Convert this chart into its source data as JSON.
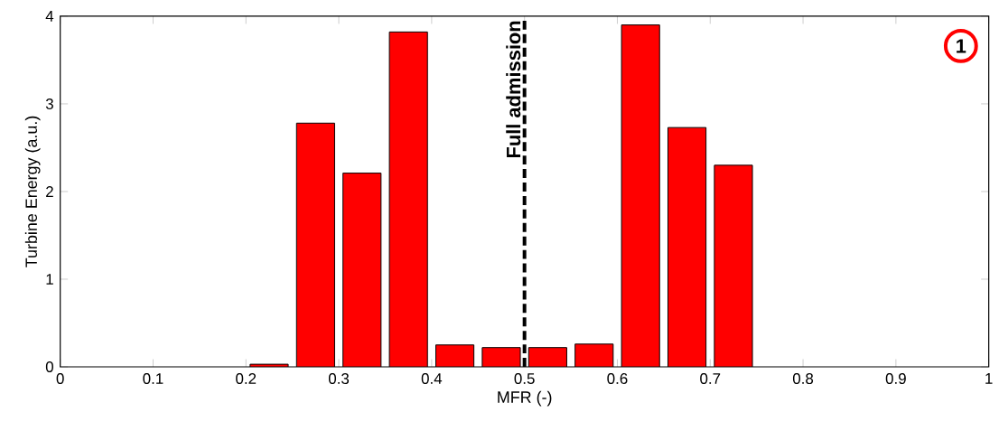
{
  "chart_data": {
    "type": "bar",
    "xlabel": "MFR (-)",
    "ylabel": "Turbine Energy (a.u.)",
    "x": [
      0.225,
      0.275,
      0.325,
      0.375,
      0.425,
      0.475,
      0.525,
      0.575,
      0.625,
      0.675,
      0.725
    ],
    "values": [
      0.03,
      2.78,
      2.21,
      3.82,
      0.25,
      0.22,
      0.22,
      0.26,
      3.9,
      2.73,
      2.3
    ],
    "color": "#ff0000",
    "xlim": [
      0,
      1
    ],
    "ylim": [
      0,
      4
    ],
    "xticks": [
      0,
      0.1,
      0.2,
      0.3,
      0.4,
      0.5,
      0.6,
      0.7,
      0.8,
      0.9,
      1
    ],
    "yticks": [
      0,
      1,
      2,
      3,
      4
    ],
    "ref_lines": [
      {
        "axis": "x",
        "value": 0.5,
        "label": "Full admission",
        "color": "#000000",
        "line_style": "dashed"
      }
    ],
    "annotations": [
      "1"
    ]
  }
}
